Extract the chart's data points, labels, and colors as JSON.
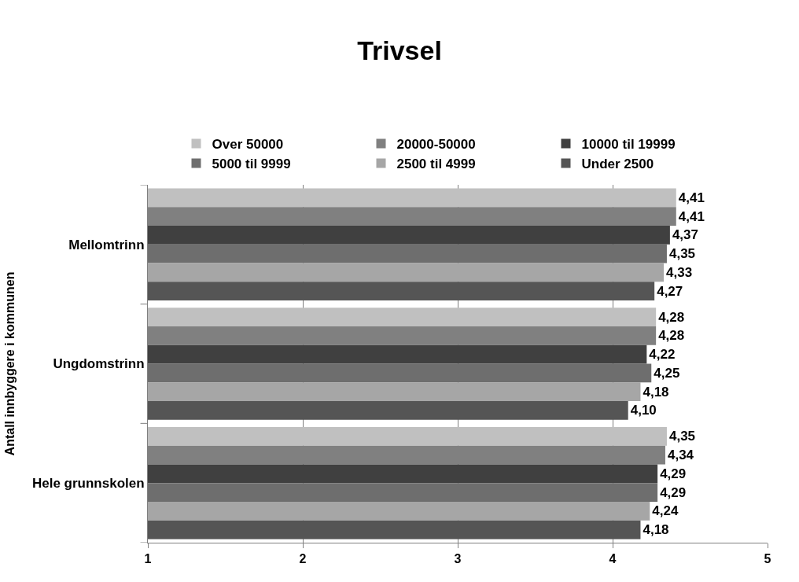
{
  "chart_data": {
    "type": "bar",
    "orientation": "horizontal",
    "title": "Trivsel",
    "ylabel": "Antall innbyggere i kommunen",
    "categories": [
      "Mellomtrinn",
      "Ungdomstrinn",
      "Hele grunnskolen"
    ],
    "series": [
      {
        "name": "Over 50000",
        "color": "#c0c0c0",
        "values": [
          4.41,
          4.28,
          4.35
        ],
        "value_labels": [
          "4,41",
          "4,28",
          "4,35"
        ]
      },
      {
        "name": "20000-50000",
        "color": "#808080",
        "values": [
          4.41,
          4.28,
          4.34
        ],
        "value_labels": [
          "4,41",
          "4,28",
          "4,34"
        ]
      },
      {
        "name": "10000 til 19999",
        "color": "#404040",
        "values": [
          4.37,
          4.22,
          4.29
        ],
        "value_labels": [
          "4,37",
          "4,22",
          "4,29"
        ]
      },
      {
        "name": "5000 til 9999",
        "color": "#6e6e6e",
        "values": [
          4.35,
          4.25,
          4.29
        ],
        "value_labels": [
          "4,35",
          "4,25",
          "4,29"
        ]
      },
      {
        "name": "2500 til 4999",
        "color": "#a6a6a6",
        "values": [
          4.33,
          4.18,
          4.24
        ],
        "value_labels": [
          "4,33",
          "4,18",
          "4,24"
        ]
      },
      {
        "name": "Under 2500",
        "color": "#555555",
        "values": [
          4.27,
          4.1,
          4.18
        ],
        "value_labels": [
          "4,27",
          "4,10",
          "4,18"
        ]
      }
    ],
    "xlim": [
      1,
      5
    ],
    "xticks": [
      1,
      2,
      3,
      4,
      5
    ],
    "grid": "x",
    "legend": "top"
  }
}
